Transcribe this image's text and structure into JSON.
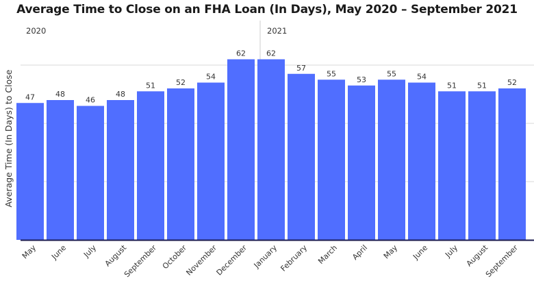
{
  "colors": {
    "bar": "#506eff",
    "axis": "#1a1a4e",
    "grid": "#d9d9d9",
    "divider": "#cccccc",
    "text": "#333333"
  },
  "chart_data": {
    "type": "bar",
    "title": "Average Time to Close on an FHA Loan (In Days), May 2020 – September 2021",
    "ylabel": "Average Time (In Days) to Close",
    "xlabel": "",
    "ylim": [
      0,
      66
    ],
    "grid": true,
    "year_labels": [
      {
        "label": "2020",
        "start_index": 0
      },
      {
        "label": "2021",
        "start_index": 8
      }
    ],
    "categories": [
      "May",
      "June",
      "July",
      "August",
      "September",
      "October",
      "November",
      "December",
      "January",
      "February",
      "March",
      "April",
      "May",
      "June",
      "July",
      "August",
      "September"
    ],
    "values": [
      47,
      48,
      46,
      48,
      51,
      52,
      54,
      62,
      62,
      57,
      55,
      53,
      55,
      54,
      51,
      51,
      52
    ]
  }
}
